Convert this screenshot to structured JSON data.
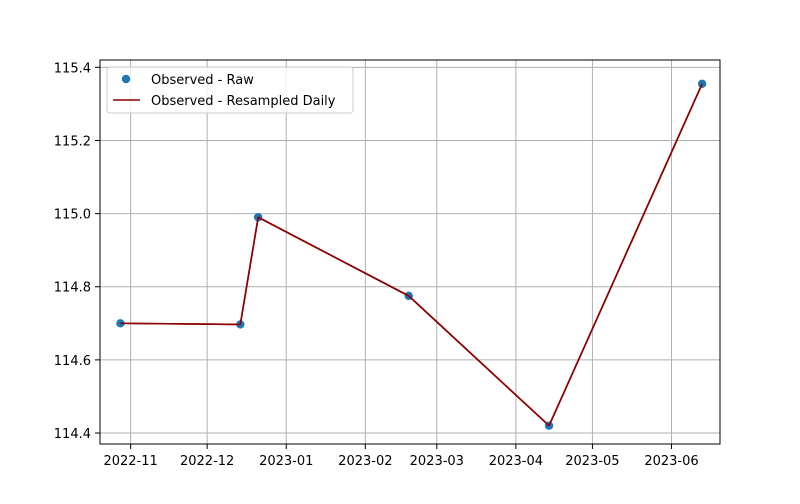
{
  "chart_data": {
    "type": "line",
    "title": "",
    "xlabel": "",
    "ylabel": "",
    "x_axis_type": "date",
    "xlim": [
      "2022-10-20",
      "2023-06-20"
    ],
    "ylim": [
      114.37,
      115.42
    ],
    "x_ticks": [
      "2022-11-01",
      "2022-12-01",
      "2023-01-01",
      "2023-02-01",
      "2023-03-01",
      "2023-04-01",
      "2023-05-01",
      "2023-06-01"
    ],
    "x_tick_labels": [
      "2022-11",
      "2022-12",
      "2023-01",
      "2023-02",
      "2023-03",
      "2023-04",
      "2023-05",
      "2023-06"
    ],
    "y_ticks": [
      114.4,
      114.6,
      114.8,
      115.0,
      115.2,
      115.4
    ],
    "y_tick_labels": [
      "114.4",
      "114.6",
      "114.8",
      "115.0",
      "115.2",
      "115.4"
    ],
    "grid": true,
    "legend": {
      "position": "top-left",
      "entries": [
        {
          "label": "Observed - Raw",
          "kind": "marker",
          "color": "#1f77b4"
        },
        {
          "label": "Observed - Resampled Daily",
          "kind": "line",
          "color": "#8b0000"
        }
      ]
    },
    "series": [
      {
        "name": "Observed - Raw",
        "type": "scatter",
        "color": "#1f77b4",
        "points": [
          {
            "x": "2022-10-28",
            "y": 114.7
          },
          {
            "x": "2022-12-14",
            "y": 114.697
          },
          {
            "x": "2022-12-21",
            "y": 114.99
          },
          {
            "x": "2023-02-18",
            "y": 114.775
          },
          {
            "x": "2023-04-14",
            "y": 114.42
          },
          {
            "x": "2023-06-13",
            "y": 115.355
          }
        ]
      },
      {
        "name": "Observed - Resampled Daily",
        "type": "line",
        "color": "#8b0000",
        "points": [
          {
            "x": "2022-10-28",
            "y": 114.7
          },
          {
            "x": "2022-12-14",
            "y": 114.697
          },
          {
            "x": "2022-12-21",
            "y": 114.99
          },
          {
            "x": "2023-02-18",
            "y": 114.775
          },
          {
            "x": "2023-04-14",
            "y": 114.42
          },
          {
            "x": "2023-06-13",
            "y": 115.355
          }
        ]
      }
    ]
  }
}
